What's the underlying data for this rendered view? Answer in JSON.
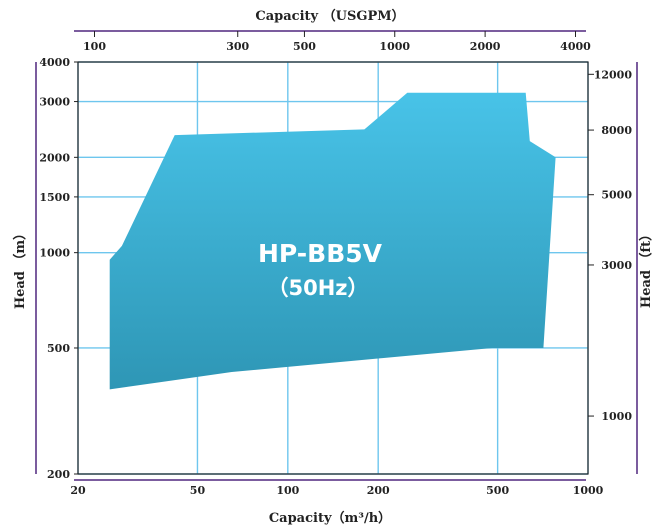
{
  "chart_data": {
    "type": "area",
    "title": "",
    "region": {
      "name": "HP-BB5V",
      "label_line1": "HP-BB5V",
      "label_line2": "（50Hz）",
      "color_top": "#48c3e8",
      "color_bottom": "#2e96b5",
      "boundary_m3h_m": [
        [
          25.5,
          950
        ],
        [
          28,
          1050
        ],
        [
          42,
          2350
        ],
        [
          180,
          2450
        ],
        [
          250,
          3200
        ],
        [
          620,
          3200
        ],
        [
          640,
          2250
        ],
        [
          780,
          2000
        ],
        [
          710,
          500
        ],
        [
          480,
          500
        ],
        [
          65,
          420
        ],
        [
          25.5,
          370
        ]
      ]
    },
    "xlabel_bottom": "Capacity（m³/h）",
    "xlabel_top": "Capacity （USGPM）",
    "ylabel_left": "Head （m）",
    "ylabel_right": "Head （ft）",
    "x_scale": "log",
    "y_scale": "log",
    "xlim": [
      20,
      1000
    ],
    "ylim": [
      200,
      4000
    ],
    "x_ticks_bottom": [
      20,
      50,
      100,
      200,
      500,
      1000
    ],
    "y_ticks_left": [
      200,
      500,
      1000,
      1500,
      2000,
      3000,
      4000
    ],
    "x_ticks_top": [
      {
        "label": "100",
        "m3h": 22.7
      },
      {
        "label": "300",
        "m3h": 68.1
      },
      {
        "label": "500",
        "m3h": 113.6
      },
      {
        "label": "1000",
        "m3h": 227.1
      },
      {
        "label": "2000",
        "m3h": 454.2
      },
      {
        "label": "4000",
        "m3h": 908.5
      }
    ],
    "y_ticks_right": [
      {
        "label": "1000",
        "m": 304.8
      },
      {
        "label": "3000",
        "m": 914.4
      },
      {
        "label": "5000",
        "m": 1524
      },
      {
        "label": "8000",
        "m": 2438.4
      },
      {
        "label": "12000",
        "m": 3657.6
      }
    ],
    "grid": true,
    "accent_color": "#7b5c9e",
    "grid_color": "#6ec6ee"
  }
}
